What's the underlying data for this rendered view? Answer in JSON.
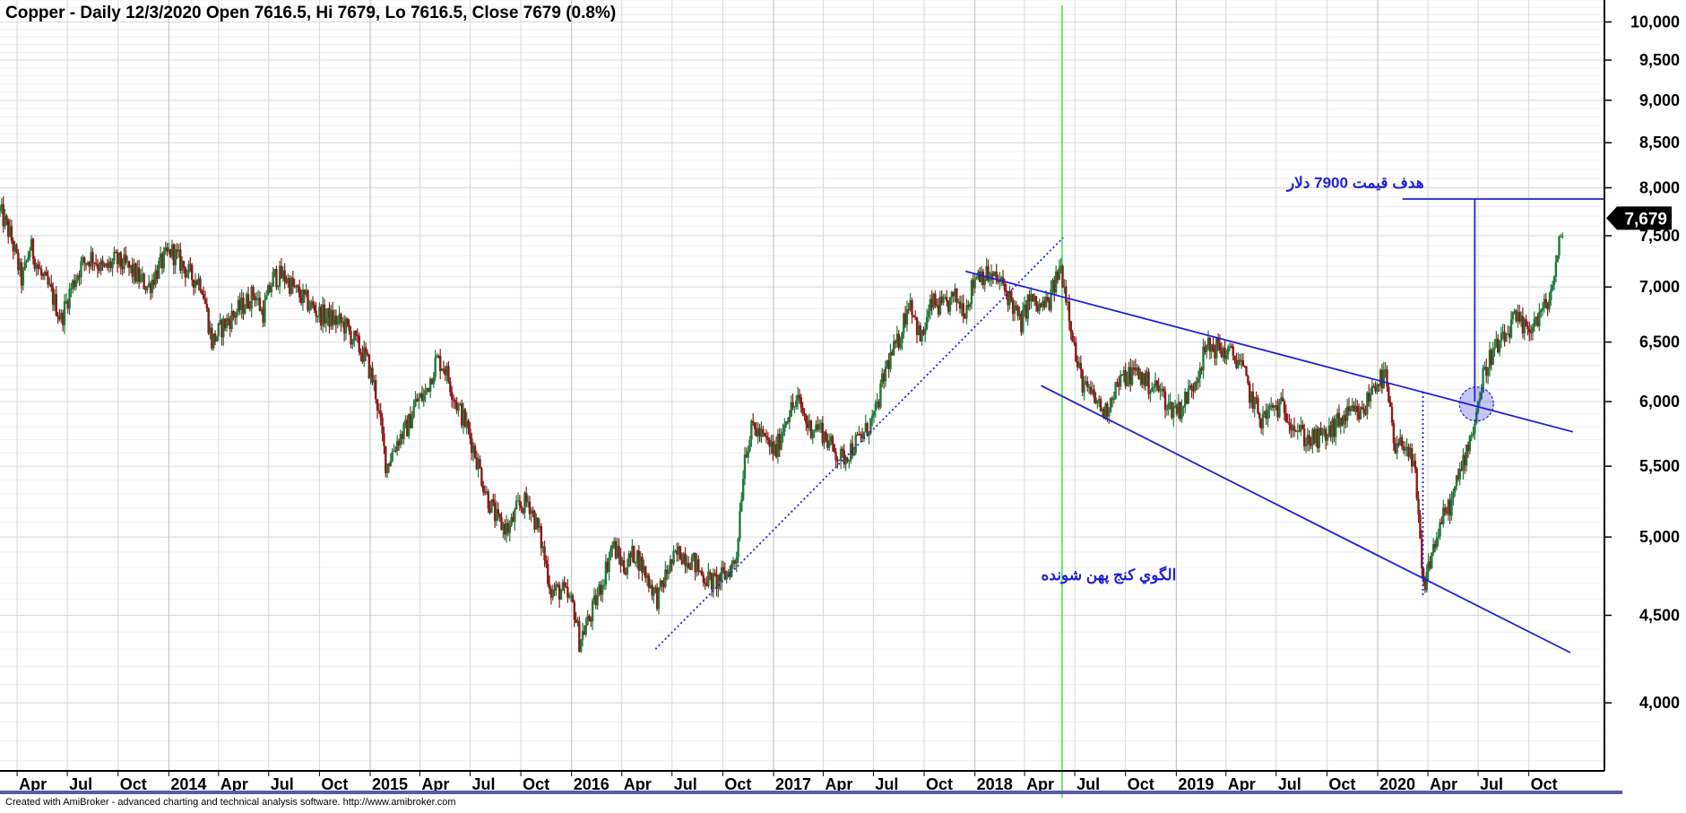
{
  "chart_data": {
    "type": "candlestick",
    "title": "Copper - Daily 12/3/2020 Open 7616.5, Hi 7679, Lo 7616.5, Close 7679 (0.8%)",
    "footer": "Created with AmiBroker - advanced charting and technical analysis software. http://www.amibroker.com",
    "y_scale": "log",
    "ylim": [
      3650,
      10300
    ],
    "y_ticks": [
      {
        "value": 4000,
        "label": "4,000"
      },
      {
        "value": 4500,
        "label": "4,500"
      },
      {
        "value": 5000,
        "label": "5,000"
      },
      {
        "value": 5500,
        "label": "5,500"
      },
      {
        "value": 6000,
        "label": "6,000"
      },
      {
        "value": 6500,
        "label": "6,500"
      },
      {
        "value": 7000,
        "label": "7,000"
      },
      {
        "value": 7500,
        "label": "7,500"
      },
      {
        "value": 8000,
        "label": "8,000"
      },
      {
        "value": 8500,
        "label": "8,500"
      },
      {
        "value": 9000,
        "label": "9,000"
      },
      {
        "value": 9500,
        "label": "9,500"
      },
      {
        "value": 10000,
        "label": "10,000"
      }
    ],
    "xlim": [
      "2013-03-01",
      "2021-02-15"
    ],
    "x_ticks": [
      {
        "date": "2013-04-01",
        "label": "Apr",
        "year": false
      },
      {
        "date": "2013-07-01",
        "label": "Jul",
        "year": false
      },
      {
        "date": "2013-10-01",
        "label": "Oct",
        "year": false
      },
      {
        "date": "2014-01-01",
        "label": "2014",
        "year": true
      },
      {
        "date": "2014-04-01",
        "label": "Apr",
        "year": false
      },
      {
        "date": "2014-07-01",
        "label": "Jul",
        "year": false
      },
      {
        "date": "2014-10-01",
        "label": "Oct",
        "year": false
      },
      {
        "date": "2015-01-01",
        "label": "2015",
        "year": true
      },
      {
        "date": "2015-04-01",
        "label": "Apr",
        "year": false
      },
      {
        "date": "2015-07-01",
        "label": "Jul",
        "year": false
      },
      {
        "date": "2015-10-01",
        "label": "Oct",
        "year": false
      },
      {
        "date": "2016-01-01",
        "label": "2016",
        "year": true
      },
      {
        "date": "2016-04-01",
        "label": "Apr",
        "year": false
      },
      {
        "date": "2016-07-01",
        "label": "Jul",
        "year": false
      },
      {
        "date": "2016-10-01",
        "label": "Oct",
        "year": false
      },
      {
        "date": "2017-01-01",
        "label": "2017",
        "year": true
      },
      {
        "date": "2017-04-01",
        "label": "Apr",
        "year": false
      },
      {
        "date": "2017-07-01",
        "label": "Jul",
        "year": false
      },
      {
        "date": "2017-10-01",
        "label": "Oct",
        "year": false
      },
      {
        "date": "2018-01-01",
        "label": "2018",
        "year": true
      },
      {
        "date": "2018-04-01",
        "label": "Apr",
        "year": false
      },
      {
        "date": "2018-07-01",
        "label": "Jul",
        "year": false
      },
      {
        "date": "2018-10-01",
        "label": "Oct",
        "year": false
      },
      {
        "date": "2019-01-01",
        "label": "2019",
        "year": true
      },
      {
        "date": "2019-04-01",
        "label": "Apr",
        "year": false
      },
      {
        "date": "2019-07-01",
        "label": "Jul",
        "year": false
      },
      {
        "date": "2019-10-01",
        "label": "Oct",
        "year": false
      },
      {
        "date": "2020-01-01",
        "label": "2020",
        "year": true
      },
      {
        "date": "2020-04-01",
        "label": "Apr",
        "year": false
      },
      {
        "date": "2020-07-01",
        "label": "Jul",
        "year": false
      },
      {
        "date": "2020-10-01",
        "label": "Oct",
        "year": false
      }
    ],
    "grid": true,
    "last_price": {
      "value": 7679,
      "label": "7,679"
    },
    "close_path": [
      [
        "2013-03-01",
        7750
      ],
      [
        "2013-03-20",
        7500
      ],
      [
        "2013-04-10",
        7050
      ],
      [
        "2013-04-25",
        7400
      ],
      [
        "2013-05-15",
        7100
      ],
      [
        "2013-06-01",
        6950
      ],
      [
        "2013-06-20",
        6700
      ],
      [
        "2013-07-05",
        6950
      ],
      [
        "2013-07-25",
        7200
      ],
      [
        "2013-08-15",
        7300
      ],
      [
        "2013-09-05",
        7150
      ],
      [
        "2013-09-25",
        7250
      ],
      [
        "2013-10-15",
        7200
      ],
      [
        "2013-11-05",
        7100
      ],
      [
        "2013-11-25",
        7000
      ],
      [
        "2013-12-15",
        7200
      ],
      [
        "2014-01-05",
        7350
      ],
      [
        "2014-01-20",
        7250
      ],
      [
        "2014-02-10",
        7100
      ],
      [
        "2014-03-01",
        7050
      ],
      [
        "2014-03-20",
        6500
      ],
      [
        "2014-04-10",
        6650
      ],
      [
        "2014-04-30",
        6750
      ],
      [
        "2014-05-20",
        6850
      ],
      [
        "2014-06-05",
        6950
      ],
      [
        "2014-06-20",
        6750
      ],
      [
        "2014-07-10",
        7100
      ],
      [
        "2014-07-30",
        7100
      ],
      [
        "2014-08-20",
        6950
      ],
      [
        "2014-09-10",
        6850
      ],
      [
        "2014-10-01",
        6750
      ],
      [
        "2014-10-25",
        6700
      ],
      [
        "2014-11-15",
        6650
      ],
      [
        "2014-12-05",
        6500
      ],
      [
        "2014-12-25",
        6350
      ],
      [
        "2015-01-10",
        6100
      ],
      [
        "2015-01-30",
        5500
      ],
      [
        "2015-02-20",
        5700
      ],
      [
        "2015-03-10",
        5800
      ],
      [
        "2015-03-25",
        6000
      ],
      [
        "2015-04-10",
        6050
      ],
      [
        "2015-05-01",
        6350
      ],
      [
        "2015-05-15",
        6300
      ],
      [
        "2015-06-05",
        6000
      ],
      [
        "2015-06-25",
        5800
      ],
      [
        "2015-07-10",
        5600
      ],
      [
        "2015-07-30",
        5300
      ],
      [
        "2015-08-20",
        5100
      ],
      [
        "2015-09-10",
        5050
      ],
      [
        "2015-09-25",
        5200
      ],
      [
        "2015-10-15",
        5250
      ],
      [
        "2015-11-05",
        5000
      ],
      [
        "2015-11-25",
        4650
      ],
      [
        "2015-12-15",
        4650
      ],
      [
        "2016-01-05",
        4550
      ],
      [
        "2016-01-15",
        4350
      ],
      [
        "2016-02-05",
        4500
      ],
      [
        "2016-02-25",
        4700
      ],
      [
        "2016-03-15",
        4950
      ],
      [
        "2016-04-05",
        4800
      ],
      [
        "2016-04-25",
        4900
      ],
      [
        "2016-05-15",
        4750
      ],
      [
        "2016-06-05",
        4600
      ],
      [
        "2016-06-25",
        4800
      ],
      [
        "2016-07-15",
        4900
      ],
      [
        "2016-08-05",
        4850
      ],
      [
        "2016-08-25",
        4750
      ],
      [
        "2016-09-15",
        4700
      ],
      [
        "2016-10-05",
        4750
      ],
      [
        "2016-10-25",
        4850
      ],
      [
        "2016-11-10",
        5600
      ],
      [
        "2016-11-25",
        5800
      ],
      [
        "2016-12-15",
        5700
      ],
      [
        "2017-01-05",
        5600
      ],
      [
        "2017-01-25",
        5900
      ],
      [
        "2017-02-15",
        6000
      ],
      [
        "2017-03-05",
        5800
      ],
      [
        "2017-03-25",
        5800
      ],
      [
        "2017-04-15",
        5650
      ],
      [
        "2017-05-05",
        5550
      ],
      [
        "2017-05-25",
        5650
      ],
      [
        "2017-06-15",
        5750
      ],
      [
        "2017-07-05",
        5900
      ],
      [
        "2017-07-25",
        6300
      ],
      [
        "2017-08-15",
        6500
      ],
      [
        "2017-09-05",
        6900
      ],
      [
        "2017-09-25",
        6500
      ],
      [
        "2017-10-15",
        6850
      ],
      [
        "2017-11-05",
        6800
      ],
      [
        "2017-11-25",
        6900
      ],
      [
        "2017-12-15",
        6800
      ],
      [
        "2018-01-05",
        7150
      ],
      [
        "2018-01-25",
        7100
      ],
      [
        "2018-02-15",
        7050
      ],
      [
        "2018-03-05",
        6900
      ],
      [
        "2018-03-25",
        6650
      ],
      [
        "2018-04-10",
        6900
      ],
      [
        "2018-04-25",
        6800
      ],
      [
        "2018-05-15",
        6850
      ],
      [
        "2018-06-05",
        7200
      ],
      [
        "2018-06-20",
        6800
      ],
      [
        "2018-07-05",
        6300
      ],
      [
        "2018-07-20",
        6100
      ],
      [
        "2018-08-10",
        6000
      ],
      [
        "2018-08-25",
        5900
      ],
      [
        "2018-09-10",
        6100
      ],
      [
        "2018-09-30",
        6200
      ],
      [
        "2018-10-20",
        6250
      ],
      [
        "2018-11-10",
        6150
      ],
      [
        "2018-12-01",
        6100
      ],
      [
        "2018-12-20",
        5950
      ],
      [
        "2019-01-10",
        5950
      ],
      [
        "2019-02-01",
        6150
      ],
      [
        "2019-02-25",
        6450
      ],
      [
        "2019-03-15",
        6450
      ],
      [
        "2019-04-05",
        6400
      ],
      [
        "2019-04-25",
        6350
      ],
      [
        "2019-05-15",
        6050
      ],
      [
        "2019-06-05",
        5850
      ],
      [
        "2019-06-25",
        5950
      ],
      [
        "2019-07-15",
        5950
      ],
      [
        "2019-08-05",
        5800
      ],
      [
        "2019-08-25",
        5700
      ],
      [
        "2019-09-15",
        5700
      ],
      [
        "2019-10-05",
        5750
      ],
      [
        "2019-10-25",
        5850
      ],
      [
        "2019-11-15",
        5900
      ],
      [
        "2019-12-05",
        5900
      ],
      [
        "2019-12-25",
        6150
      ],
      [
        "2020-01-15",
        6200
      ],
      [
        "2020-02-01",
        5600
      ],
      [
        "2020-02-20",
        5700
      ],
      [
        "2020-03-10",
        5400
      ],
      [
        "2020-03-23",
        4650
      ],
      [
        "2020-04-05",
        4850
      ],
      [
        "2020-04-25",
        5100
      ],
      [
        "2020-05-15",
        5250
      ],
      [
        "2020-06-05",
        5550
      ],
      [
        "2020-06-25",
        5850
      ],
      [
        "2020-07-10",
        6200
      ],
      [
        "2020-07-25",
        6400
      ],
      [
        "2020-08-15",
        6500
      ],
      [
        "2020-09-05",
        6700
      ],
      [
        "2020-09-25",
        6600
      ],
      [
        "2020-10-15",
        6700
      ],
      [
        "2020-11-05",
        6850
      ],
      [
        "2020-11-20",
        7200
      ],
      [
        "2020-12-03",
        7679
      ]
    ],
    "annotations": [
      {
        "id": "target-label",
        "text": "هدف قیمت 7900 دلار",
        "date": "2020-03-25",
        "value": 8000,
        "color": "#1f1fd6"
      },
      {
        "id": "pattern-label",
        "text": "الگوي كنج پهن شونده",
        "date": "2019-01-01",
        "value": 4720,
        "color": "#1f1fd6"
      }
    ],
    "trendlines": [
      {
        "id": "support-trendline",
        "style": "dotted",
        "color": "#1f1fd6",
        "from": [
          "2016-06-01",
          4300
        ],
        "to": [
          "2018-06-10",
          7480
        ]
      },
      {
        "id": "wedge-upper",
        "style": "solid",
        "color": "#1f1fd6",
        "from": [
          "2017-12-15",
          7150
        ],
        "to": [
          "2020-12-20",
          5760
        ]
      },
      {
        "id": "wedge-lower",
        "style": "solid",
        "color": "#1f1fd6",
        "from": [
          "2018-05-01",
          6130
        ],
        "to": [
          "2020-12-15",
          4280
        ]
      },
      {
        "id": "target-horizontal",
        "style": "solid",
        "color": "#1f1fd6",
        "from": [
          "2020-02-15",
          7880
        ],
        "to": [
          "2021-02-15",
          7880
        ]
      },
      {
        "id": "target-vertical",
        "style": "solid",
        "color": "#1f1fd6",
        "from": [
          "2020-06-25",
          7880
        ],
        "to": [
          "2020-06-25",
          6000
        ]
      },
      {
        "id": "pattern-height-line",
        "style": "dotted",
        "color": "#1f1fd6",
        "from": [
          "2020-03-23",
          6080
        ],
        "to": [
          "2020-03-23",
          4620
        ]
      }
    ],
    "breakout_circle": {
      "date": "2020-06-28",
      "value": 5980,
      "color": "#1f1fd6"
    },
    "vertical_marker": {
      "date": "2018-06-08",
      "color": "#44dd44"
    },
    "colors": {
      "up": "#1f7a3a",
      "down": "#8b1a1a",
      "grid": "#d8d8d8",
      "axis": "#000000",
      "price_tag": "#000000",
      "footer_bar": "#5a5aa8"
    }
  }
}
